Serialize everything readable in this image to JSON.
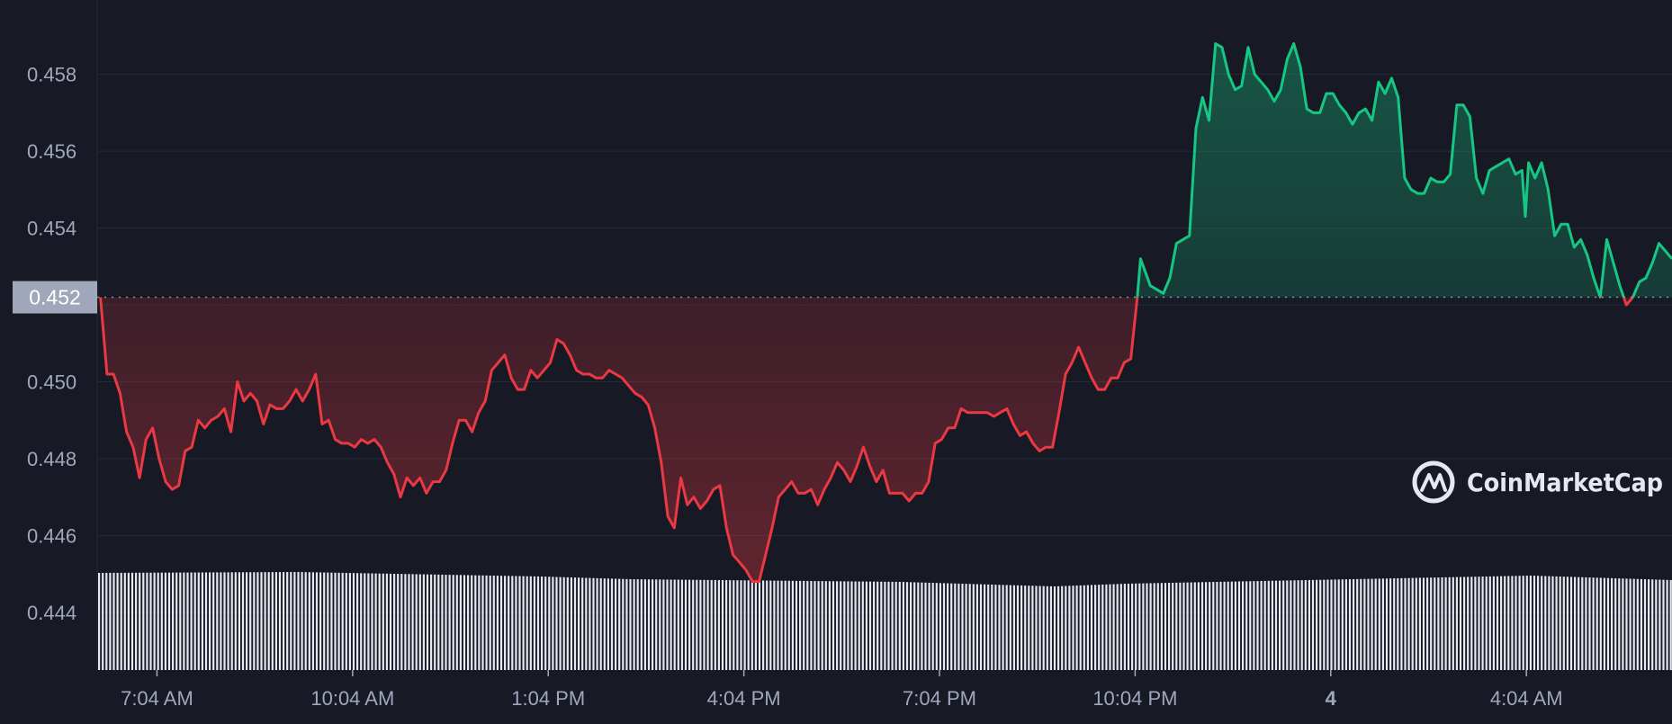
{
  "colors": {
    "background": "#171924",
    "grid": "#262a37",
    "axis_text": "#a1a7bb",
    "up": "#16c784",
    "down": "#ea3943",
    "reference_line": "#8e94a8",
    "current_price_bg": "#a1a7bb",
    "current_price_text": "#ffffff",
    "volume": "#e6e8ef",
    "watermark": "#e6e8ef"
  },
  "watermark": {
    "text": "CoinMarketCap",
    "icon": "coinmarketcap-logo-icon"
  },
  "current_price_label": "0.452",
  "chart_data": {
    "type": "area",
    "title": "",
    "xlabel": "",
    "ylabel": "",
    "ylim": [
      0.4425,
      0.4597
    ],
    "reference_value": 0.4522,
    "grid": "horizontal",
    "legend": "none",
    "y_ticks": [
      {
        "value": 0.458,
        "label": "0.458"
      },
      {
        "value": 0.456,
        "label": "0.456"
      },
      {
        "value": 0.454,
        "label": "0.454"
      },
      {
        "value": 0.452,
        "label": "0.452"
      },
      {
        "value": 0.45,
        "label": "0.450"
      },
      {
        "value": 0.448,
        "label": "0.448"
      },
      {
        "value": 0.446,
        "label": "0.446"
      },
      {
        "value": 0.444,
        "label": "0.444"
      }
    ],
    "x_range": [
      6.15,
      30.3
    ],
    "x_ticks": [
      {
        "x": 7.067,
        "label": "7:04 AM",
        "bold": false
      },
      {
        "x": 10.067,
        "label": "10:04 AM",
        "bold": false
      },
      {
        "x": 13.067,
        "label": "1:04 PM",
        "bold": false
      },
      {
        "x": 16.067,
        "label": "4:04 PM",
        "bold": false
      },
      {
        "x": 19.067,
        "label": "7:04 PM",
        "bold": false
      },
      {
        "x": 22.067,
        "label": "10:04 PM",
        "bold": false
      },
      {
        "x": 25.067,
        "label": "4",
        "bold": true
      },
      {
        "x": 28.067,
        "label": "4:04 AM",
        "bold": false
      }
    ],
    "series": [
      {
        "values": [
          [
            6.2,
            0.4522
          ],
          [
            6.3,
            0.4502
          ],
          [
            6.4,
            0.4502
          ],
          [
            6.5,
            0.4497
          ],
          [
            6.6,
            0.4487
          ],
          [
            6.7,
            0.4483
          ],
          [
            6.8,
            0.4475
          ],
          [
            6.9,
            0.4485
          ],
          [
            7.0,
            0.4488
          ],
          [
            7.1,
            0.448
          ],
          [
            7.2,
            0.4474
          ],
          [
            7.3,
            0.4472
          ],
          [
            7.4,
            0.4473
          ],
          [
            7.5,
            0.4482
          ],
          [
            7.6,
            0.4483
          ],
          [
            7.7,
            0.449
          ],
          [
            7.8,
            0.4488
          ],
          [
            7.9,
            0.449
          ],
          [
            8.0,
            0.4491
          ],
          [
            8.1,
            0.4493
          ],
          [
            8.2,
            0.4487
          ],
          [
            8.3,
            0.45
          ],
          [
            8.4,
            0.4495
          ],
          [
            8.5,
            0.4497
          ],
          [
            8.6,
            0.4495
          ],
          [
            8.7,
            0.4489
          ],
          [
            8.8,
            0.4494
          ],
          [
            8.9,
            0.4493
          ],
          [
            9.0,
            0.4493
          ],
          [
            9.1,
            0.4495
          ],
          [
            9.2,
            0.4498
          ],
          [
            9.3,
            0.4495
          ],
          [
            9.4,
            0.4498
          ],
          [
            9.5,
            0.4502
          ],
          [
            9.6,
            0.4489
          ],
          [
            9.7,
            0.449
          ],
          [
            9.8,
            0.4485
          ],
          [
            9.9,
            0.4484
          ],
          [
            10.0,
            0.4484
          ],
          [
            10.1,
            0.4483
          ],
          [
            10.2,
            0.4485
          ],
          [
            10.3,
            0.4484
          ],
          [
            10.4,
            0.4485
          ],
          [
            10.5,
            0.4483
          ],
          [
            10.6,
            0.4479
          ],
          [
            10.7,
            0.4476
          ],
          [
            10.8,
            0.447
          ],
          [
            10.9,
            0.4475
          ],
          [
            11.0,
            0.4473
          ],
          [
            11.1,
            0.4475
          ],
          [
            11.2,
            0.4471
          ],
          [
            11.3,
            0.4474
          ],
          [
            11.4,
            0.4474
          ],
          [
            11.5,
            0.4477
          ],
          [
            11.6,
            0.4484
          ],
          [
            11.7,
            0.449
          ],
          [
            11.8,
            0.449
          ],
          [
            11.9,
            0.4487
          ],
          [
            12.0,
            0.4492
          ],
          [
            12.1,
            0.4495
          ],
          [
            12.2,
            0.4503
          ],
          [
            12.3,
            0.4505
          ],
          [
            12.4,
            0.4507
          ],
          [
            12.5,
            0.4501
          ],
          [
            12.6,
            0.4498
          ],
          [
            12.7,
            0.4498
          ],
          [
            12.8,
            0.4503
          ],
          [
            12.9,
            0.4501
          ],
          [
            13.0,
            0.4503
          ],
          [
            13.1,
            0.4505
          ],
          [
            13.2,
            0.4511
          ],
          [
            13.3,
            0.451
          ],
          [
            13.4,
            0.4507
          ],
          [
            13.5,
            0.4503
          ],
          [
            13.6,
            0.4502
          ],
          [
            13.7,
            0.4502
          ],
          [
            13.8,
            0.4501
          ],
          [
            13.9,
            0.4501
          ],
          [
            14.0,
            0.4503
          ],
          [
            14.1,
            0.4502
          ],
          [
            14.2,
            0.4501
          ],
          [
            14.3,
            0.4499
          ],
          [
            14.4,
            0.4497
          ],
          [
            14.5,
            0.4496
          ],
          [
            14.6,
            0.4494
          ],
          [
            14.7,
            0.4488
          ],
          [
            14.8,
            0.4479
          ],
          [
            14.9,
            0.4465
          ],
          [
            15.0,
            0.4462
          ],
          [
            15.1,
            0.4475
          ],
          [
            15.2,
            0.4468
          ],
          [
            15.3,
            0.447
          ],
          [
            15.4,
            0.4467
          ],
          [
            15.5,
            0.4469
          ],
          [
            15.6,
            0.4472
          ],
          [
            15.7,
            0.4473
          ],
          [
            15.8,
            0.4462
          ],
          [
            15.9,
            0.4455
          ],
          [
            16.0,
            0.4453
          ],
          [
            16.1,
            0.4451
          ],
          [
            16.2,
            0.4448
          ],
          [
            16.3,
            0.4448
          ],
          [
            16.4,
            0.4455
          ],
          [
            16.5,
            0.4462
          ],
          [
            16.6,
            0.447
          ],
          [
            16.7,
            0.4472
          ],
          [
            16.8,
            0.4474
          ],
          [
            16.9,
            0.4471
          ],
          [
            17.0,
            0.4471
          ],
          [
            17.1,
            0.4472
          ],
          [
            17.2,
            0.4468
          ],
          [
            17.3,
            0.4472
          ],
          [
            17.4,
            0.4475
          ],
          [
            17.5,
            0.4479
          ],
          [
            17.6,
            0.4477
          ],
          [
            17.7,
            0.4474
          ],
          [
            17.8,
            0.4478
          ],
          [
            17.9,
            0.4483
          ],
          [
            18.0,
            0.4478
          ],
          [
            18.1,
            0.4474
          ],
          [
            18.2,
            0.4477
          ],
          [
            18.3,
            0.4471
          ],
          [
            18.4,
            0.4471
          ],
          [
            18.5,
            0.4471
          ],
          [
            18.6,
            0.4469
          ],
          [
            18.7,
            0.4471
          ],
          [
            18.8,
            0.4471
          ],
          [
            18.9,
            0.4474
          ],
          [
            19.0,
            0.4484
          ],
          [
            19.1,
            0.4485
          ],
          [
            19.2,
            0.4488
          ],
          [
            19.3,
            0.4488
          ],
          [
            19.4,
            0.4493
          ],
          [
            19.5,
            0.4492
          ],
          [
            19.6,
            0.4492
          ],
          [
            19.7,
            0.4492
          ],
          [
            19.8,
            0.4492
          ],
          [
            19.9,
            0.4491
          ],
          [
            20.0,
            0.4492
          ],
          [
            20.1,
            0.4493
          ],
          [
            20.2,
            0.4489
          ],
          [
            20.3,
            0.4486
          ],
          [
            20.4,
            0.4487
          ],
          [
            20.5,
            0.4484
          ],
          [
            20.6,
            0.4482
          ],
          [
            20.7,
            0.4483
          ],
          [
            20.8,
            0.4483
          ],
          [
            20.9,
            0.4492
          ],
          [
            21.0,
            0.4502
          ],
          [
            21.1,
            0.4505
          ],
          [
            21.2,
            0.4509
          ],
          [
            21.3,
            0.4505
          ],
          [
            21.4,
            0.4501
          ],
          [
            21.5,
            0.4498
          ],
          [
            21.6,
            0.4498
          ],
          [
            21.7,
            0.4501
          ],
          [
            21.8,
            0.4501
          ],
          [
            21.9,
            0.4505
          ],
          [
            22.0,
            0.4506
          ],
          [
            22.1,
            0.4522
          ],
          [
            22.15,
            0.4532
          ],
          [
            22.3,
            0.4525
          ],
          [
            22.4,
            0.4524
          ],
          [
            22.5,
            0.4523
          ],
          [
            22.6,
            0.4527
          ],
          [
            22.7,
            0.4536
          ],
          [
            22.8,
            0.4537
          ],
          [
            22.9,
            0.4538
          ],
          [
            23.0,
            0.4566
          ],
          [
            23.1,
            0.4574
          ],
          [
            23.2,
            0.4568
          ],
          [
            23.3,
            0.4588
          ],
          [
            23.4,
            0.4587
          ],
          [
            23.5,
            0.458
          ],
          [
            23.6,
            0.4576
          ],
          [
            23.7,
            0.4577
          ],
          [
            23.8,
            0.4587
          ],
          [
            23.9,
            0.458
          ],
          [
            24.0,
            0.4578
          ],
          [
            24.1,
            0.4576
          ],
          [
            24.2,
            0.4573
          ],
          [
            24.3,
            0.4576
          ],
          [
            24.4,
            0.4584
          ],
          [
            24.5,
            0.4588
          ],
          [
            24.6,
            0.4582
          ],
          [
            24.7,
            0.4571
          ],
          [
            24.8,
            0.457
          ],
          [
            24.9,
            0.457
          ],
          [
            25.0,
            0.4575
          ],
          [
            25.1,
            0.4575
          ],
          [
            25.2,
            0.4572
          ],
          [
            25.3,
            0.457
          ],
          [
            25.4,
            0.4567
          ],
          [
            25.5,
            0.457
          ],
          [
            25.6,
            0.4571
          ],
          [
            25.7,
            0.4568
          ],
          [
            25.8,
            0.4578
          ],
          [
            25.9,
            0.4575
          ],
          [
            26.0,
            0.4579
          ],
          [
            26.1,
            0.4574
          ],
          [
            26.2,
            0.4553
          ],
          [
            26.3,
            0.455
          ],
          [
            26.4,
            0.4549
          ],
          [
            26.5,
            0.4549
          ],
          [
            26.6,
            0.4553
          ],
          [
            26.7,
            0.4552
          ],
          [
            26.8,
            0.4552
          ],
          [
            26.9,
            0.4554
          ],
          [
            27.0,
            0.4572
          ],
          [
            27.1,
            0.4572
          ],
          [
            27.2,
            0.4569
          ],
          [
            27.3,
            0.4553
          ],
          [
            27.4,
            0.4549
          ],
          [
            27.5,
            0.4555
          ],
          [
            27.6,
            0.4556
          ],
          [
            27.7,
            0.4557
          ],
          [
            27.8,
            0.4558
          ],
          [
            27.9,
            0.4554
          ],
          [
            28.0,
            0.4555
          ],
          [
            28.05,
            0.4543
          ],
          [
            28.1,
            0.4557
          ],
          [
            28.2,
            0.4553
          ],
          [
            28.3,
            0.4557
          ],
          [
            28.4,
            0.455
          ],
          [
            28.5,
            0.4538
          ],
          [
            28.6,
            0.4541
          ],
          [
            28.7,
            0.4541
          ],
          [
            28.8,
            0.4535
          ],
          [
            28.9,
            0.4537
          ],
          [
            29.0,
            0.4533
          ],
          [
            29.1,
            0.4527
          ],
          [
            29.2,
            0.4522
          ],
          [
            29.3,
            0.4537
          ],
          [
            29.4,
            0.4531
          ],
          [
            29.5,
            0.4525
          ],
          [
            29.6,
            0.452
          ],
          [
            29.7,
            0.4522
          ],
          [
            29.8,
            0.4526
          ],
          [
            29.9,
            0.4527
          ],
          [
            30.0,
            0.4531
          ],
          [
            30.1,
            0.4536
          ],
          [
            30.2,
            0.4534
          ],
          [
            30.3,
            0.4532
          ]
        ]
      }
    ]
  }
}
